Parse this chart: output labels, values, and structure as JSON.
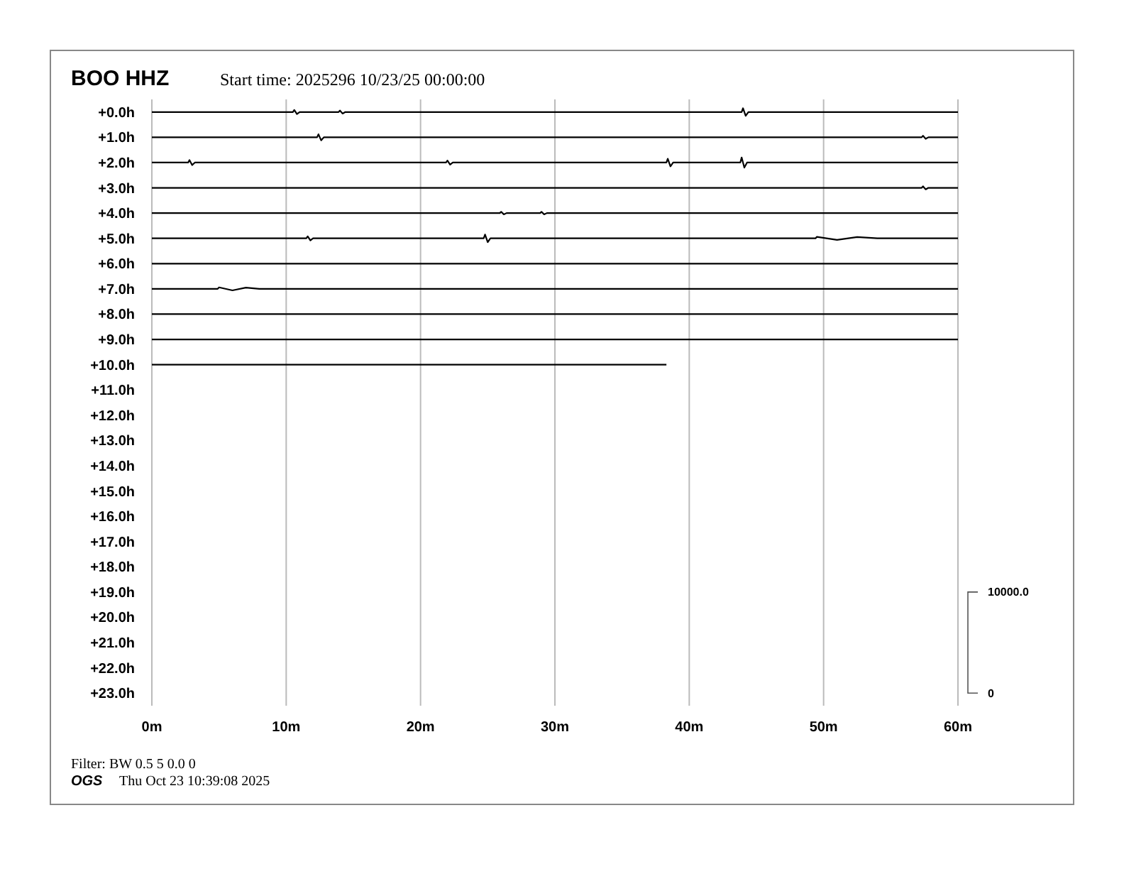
{
  "chart_data": {
    "type": "line",
    "title": "BOO HHZ",
    "subtitle": "Start time: 2025296 10/23/25 00:00:00",
    "annotations": [
      "Filter: BW 0.5 5 0.0 0",
      "OGS",
      "Thu Oct 23 10:39:08 2025",
      "10000.0",
      "0"
    ],
    "xlim": [
      0,
      60
    ],
    "xticks": [
      {
        "value": 0,
        "label": "0m"
      },
      {
        "value": 10,
        "label": "10m"
      },
      {
        "value": 20,
        "label": "20m"
      },
      {
        "value": 30,
        "label": "30m"
      },
      {
        "value": 40,
        "label": "40m"
      },
      {
        "value": 50,
        "label": "50m"
      },
      {
        "value": 60,
        "label": "60m"
      }
    ],
    "ylim": [
      23.5,
      -0.5
    ],
    "yticks": [
      {
        "value": 0,
        "label": "+0.0h"
      },
      {
        "value": 1,
        "label": "+1.0h"
      },
      {
        "value": 2,
        "label": "+2.0h"
      },
      {
        "value": 3,
        "label": "+3.0h"
      },
      {
        "value": 4,
        "label": "+4.0h"
      },
      {
        "value": 5,
        "label": "+5.0h"
      },
      {
        "value": 6,
        "label": "+6.0h"
      },
      {
        "value": 7,
        "label": "+7.0h"
      },
      {
        "value": 8,
        "label": "+8.0h"
      },
      {
        "value": 9,
        "label": "+9.0h"
      },
      {
        "value": 10,
        "label": "+10.0h"
      },
      {
        "value": 11,
        "label": "+11.0h"
      },
      {
        "value": 12,
        "label": "+12.0h"
      },
      {
        "value": 13,
        "label": "+13.0h"
      },
      {
        "value": 14,
        "label": "+14.0h"
      },
      {
        "value": 15,
        "label": "+15.0h"
      },
      {
        "value": 16,
        "label": "+16.0h"
      },
      {
        "value": 17,
        "label": "+17.0h"
      },
      {
        "value": 18,
        "label": "+18.0h"
      },
      {
        "value": 19,
        "label": "+19.0h"
      },
      {
        "value": 20,
        "label": "+20.0h"
      },
      {
        "value": 21,
        "label": "+21.0h"
      },
      {
        "value": 22,
        "label": "+22.0h"
      },
      {
        "value": 23,
        "label": "+23.0h"
      }
    ],
    "grid": "x",
    "line_style": "solid",
    "series": [
      {
        "color": "#000000",
        "x": [
          0,
          10.5,
          10.6,
          10.8,
          11,
          13.9,
          14,
          14.2,
          14.4,
          43.9,
          44,
          44.2,
          44.4,
          60
        ],
        "values": [
          0,
          0,
          -0.08,
          0.08,
          0,
          0,
          -0.06,
          0.06,
          0,
          0,
          -0.15,
          0.15,
          0,
          0
        ]
      },
      {
        "color": "#000000",
        "x": [
          0,
          12.3,
          12.4,
          12.6,
          12.8,
          57.3,
          57.4,
          57.6,
          57.8,
          60
        ],
        "values": [
          1,
          1,
          0.88,
          1.12,
          1,
          1,
          0.94,
          1.06,
          1,
          1
        ]
      },
      {
        "color": "#000000",
        "x": [
          0,
          2.7,
          2.8,
          3,
          3.2,
          21.9,
          22,
          22.2,
          22.4,
          38.3,
          38.4,
          38.6,
          38.8,
          43.8,
          43.9,
          44.1,
          44.3,
          60
        ],
        "values": [
          2,
          2,
          1.9,
          2.1,
          2,
          2,
          1.92,
          2.08,
          2,
          2,
          1.85,
          2.15,
          2,
          2,
          1.8,
          2.2,
          2,
          2
        ]
      },
      {
        "color": "#000000",
        "x": [
          0,
          57.3,
          57.4,
          57.6,
          57.8,
          60
        ],
        "values": [
          3,
          3,
          2.94,
          3.06,
          3,
          3
        ]
      },
      {
        "color": "#000000",
        "x": [
          0,
          25.9,
          26,
          26.2,
          26.4,
          28.9,
          29,
          29.2,
          29.4,
          60
        ],
        "values": [
          4,
          4,
          3.95,
          4.05,
          4,
          4,
          3.95,
          4.05,
          4,
          4
        ]
      },
      {
        "color": "#000000",
        "x": [
          0,
          11.5,
          11.6,
          11.8,
          12,
          24.7,
          24.8,
          25,
          25.2,
          49.4,
          49.5,
          51,
          52.5,
          54,
          60
        ],
        "values": [
          5,
          5,
          4.92,
          5.08,
          5,
          5,
          4.85,
          5.15,
          5,
          5,
          4.94,
          5.06,
          4.95,
          5,
          5
        ]
      },
      {
        "color": "#000000",
        "x": [
          0,
          60
        ],
        "values": [
          6,
          6
        ]
      },
      {
        "color": "#000000",
        "x": [
          0,
          4.9,
          5,
          6,
          7,
          8,
          60
        ],
        "values": [
          7,
          7,
          6.94,
          7.06,
          6.95,
          7,
          7
        ]
      },
      {
        "color": "#000000",
        "x": [
          0,
          60
        ],
        "values": [
          8,
          8
        ]
      },
      {
        "color": "#000000",
        "x": [
          0,
          60
        ],
        "values": [
          9,
          9
        ]
      },
      {
        "color": "#000000",
        "x": [
          0,
          38.3
        ],
        "values": [
          10,
          10
        ]
      }
    ]
  }
}
